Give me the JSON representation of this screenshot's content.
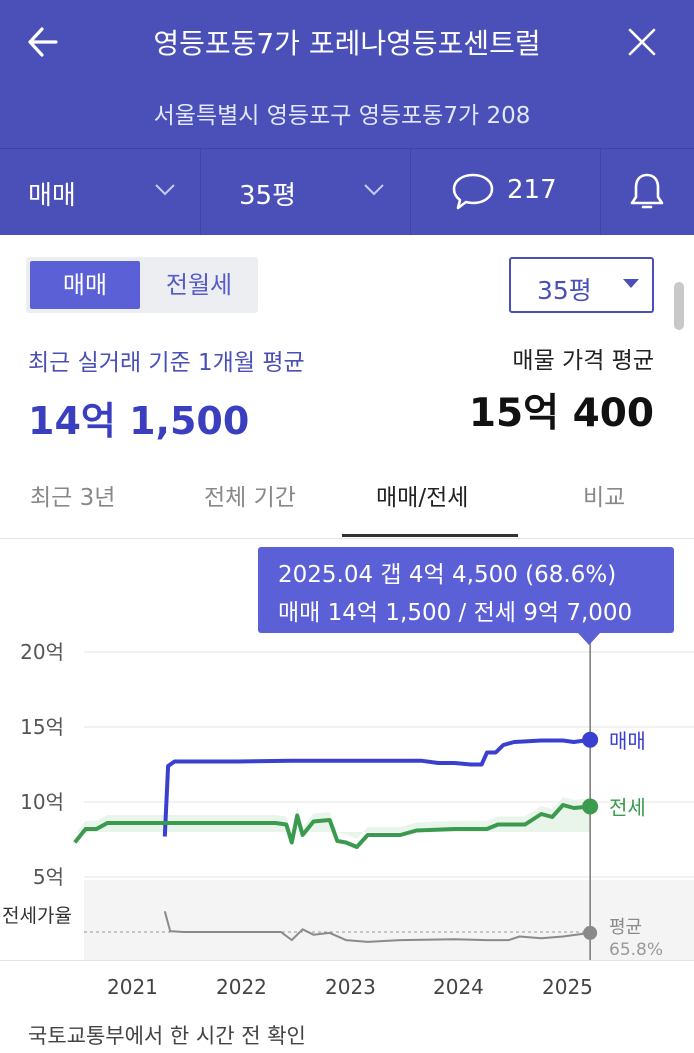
{
  "header": {
    "title": "영등포동7가 포레나영등포센트럴",
    "address": "서울특별시 영등포구 영등포동7가 208"
  },
  "filters": {
    "trade_type": "매매",
    "size": "35평",
    "comment_count": "217"
  },
  "trade_toggle": {
    "active": "매매",
    "inactive": "전월세"
  },
  "size_select": {
    "value": "35평"
  },
  "summary": {
    "recent_caption": "최근 실거래 기준 1개월 평균",
    "recent_value": "14억 1,500",
    "listing_caption": "매물 가격 평균",
    "listing_value": "15억 400"
  },
  "tabs": [
    "최근 3년",
    "전체 기간",
    "매매/전세",
    "비교"
  ],
  "tooltip": {
    "line1": "2025.04  갭 4억 4,500 (68.6%)",
    "line2": "매매 14억 1,500 / 전세 9억 7,000"
  },
  "footer": "국토교통부에서 한 시간 전 확인",
  "colors": {
    "brand": "#4a50b8",
    "sale": "#3a3fd0",
    "jeonse": "#3a9a4e",
    "ratio": "#8a8a8a"
  },
  "chart_data": {
    "type": "line",
    "y_ticks": [
      "20억",
      "15억",
      "10억",
      "5억"
    ],
    "x_ticks": [
      "2021",
      "2022",
      "2023",
      "2024",
      "2025"
    ],
    "ratio_label": "전세가율",
    "series": [
      {
        "name": "매매",
        "points": [
          [
            2021.33,
            7.7
          ],
          [
            2021.36,
            12.4
          ],
          [
            2021.42,
            12.7
          ],
          [
            2022.0,
            12.7
          ],
          [
            2022.5,
            12.75
          ],
          [
            2023.0,
            12.75
          ],
          [
            2023.5,
            12.75
          ],
          [
            2023.7,
            12.75
          ],
          [
            2023.85,
            12.6
          ],
          [
            2024.0,
            12.6
          ],
          [
            2024.15,
            12.5
          ],
          [
            2024.25,
            12.5
          ],
          [
            2024.3,
            13.3
          ],
          [
            2024.38,
            13.3
          ],
          [
            2024.45,
            13.8
          ],
          [
            2024.55,
            14.0
          ],
          [
            2024.8,
            14.1
          ],
          [
            2025.0,
            14.1
          ],
          [
            2025.1,
            14.0
          ],
          [
            2025.25,
            14.15
          ]
        ],
        "end_label": "매매"
      },
      {
        "name": "전세",
        "points": [
          [
            2020.5,
            7.3
          ],
          [
            2020.6,
            8.2
          ],
          [
            2020.7,
            8.2
          ],
          [
            2020.8,
            8.6
          ],
          [
            2021.0,
            8.6
          ],
          [
            2021.5,
            8.6
          ],
          [
            2022.0,
            8.6
          ],
          [
            2022.35,
            8.6
          ],
          [
            2022.45,
            8.5
          ],
          [
            2022.5,
            7.3
          ],
          [
            2022.55,
            9.1
          ],
          [
            2022.6,
            7.8
          ],
          [
            2022.7,
            8.7
          ],
          [
            2022.85,
            8.8
          ],
          [
            2022.92,
            7.4
          ],
          [
            2023.0,
            7.3
          ],
          [
            2023.1,
            7.0
          ],
          [
            2023.2,
            7.8
          ],
          [
            2023.5,
            7.8
          ],
          [
            2023.65,
            8.1
          ],
          [
            2024.0,
            8.2
          ],
          [
            2024.3,
            8.2
          ],
          [
            2024.4,
            8.5
          ],
          [
            2024.65,
            8.5
          ],
          [
            2024.8,
            9.2
          ],
          [
            2024.9,
            9.0
          ],
          [
            2025.0,
            9.8
          ],
          [
            2025.1,
            9.6
          ],
          [
            2025.25,
            9.7
          ]
        ],
        "end_label": "전세"
      },
      {
        "name": "전세가율",
        "points": [
          [
            2021.33,
            4.1
          ],
          [
            2021.38,
            3.0
          ],
          [
            2021.5,
            2.95
          ],
          [
            2022.0,
            2.95
          ],
          [
            2022.4,
            2.95
          ],
          [
            2022.5,
            2.5
          ],
          [
            2022.6,
            3.1
          ],
          [
            2022.7,
            2.8
          ],
          [
            2022.85,
            2.9
          ],
          [
            2023.0,
            2.5
          ],
          [
            2023.2,
            2.4
          ],
          [
            2023.5,
            2.5
          ],
          [
            2024.0,
            2.55
          ],
          [
            2024.3,
            2.5
          ],
          [
            2024.5,
            2.5
          ],
          [
            2024.6,
            2.7
          ],
          [
            2024.8,
            2.6
          ],
          [
            2025.0,
            2.7
          ],
          [
            2025.25,
            2.9
          ]
        ],
        "end_label": "평균",
        "end_value": "65.8%"
      }
    ],
    "ylim": [
      0,
      20
    ],
    "xlim": [
      2020.5,
      2025.5
    ],
    "grid": true,
    "tooltip_date": 2025.25
  }
}
